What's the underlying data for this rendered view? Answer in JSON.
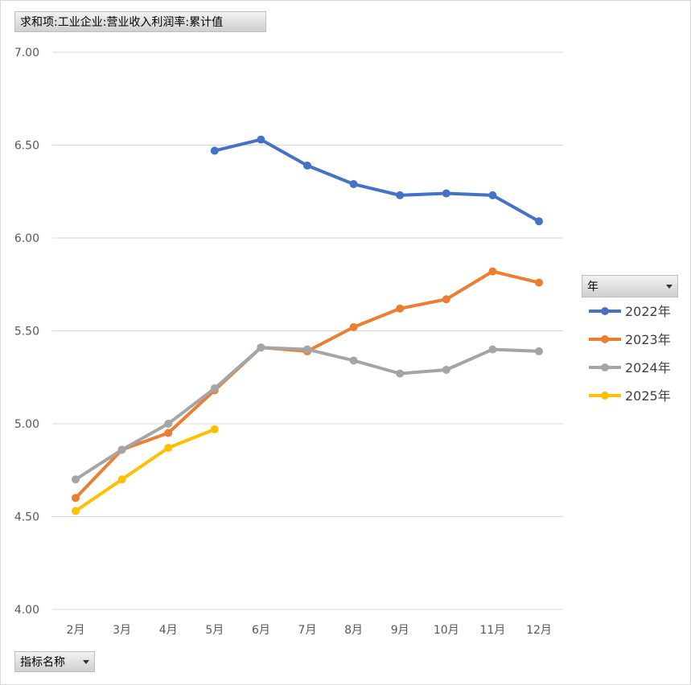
{
  "field_buttons": {
    "value_field": "求和项:工业企业:营业收入利润率:累计值",
    "legend_field": "年",
    "axis_field": "指标名称"
  },
  "chart_data": {
    "type": "line",
    "categories": [
      "2月",
      "3月",
      "4月",
      "5月",
      "6月",
      "7月",
      "8月",
      "9月",
      "10月",
      "11月",
      "12月"
    ],
    "ylim": [
      4.0,
      7.0
    ],
    "yticks": [
      "4.00",
      "4.50",
      "5.00",
      "5.50",
      "6.00",
      "6.50",
      "7.00"
    ],
    "grid": true,
    "legend_position": "right",
    "series": [
      {
        "name": "2022年",
        "color": "#4472C4",
        "values": [
          null,
          null,
          null,
          6.47,
          6.53,
          6.39,
          6.29,
          6.23,
          6.24,
          6.23,
          6.09
        ]
      },
      {
        "name": "2023年",
        "color": "#ED7D31",
        "values": [
          4.6,
          4.86,
          4.95,
          5.18,
          5.41,
          5.39,
          5.52,
          5.62,
          5.67,
          5.82,
          5.76
        ]
      },
      {
        "name": "2024年",
        "color": "#A5A5A5",
        "values": [
          4.7,
          4.86,
          5.0,
          5.19,
          5.41,
          5.4,
          5.34,
          5.27,
          5.29,
          5.4,
          5.39
        ]
      },
      {
        "name": "2025年",
        "color": "#FFC000",
        "values": [
          4.53,
          4.7,
          4.87,
          4.97,
          null,
          null,
          null,
          null,
          null,
          null,
          null
        ]
      }
    ]
  }
}
